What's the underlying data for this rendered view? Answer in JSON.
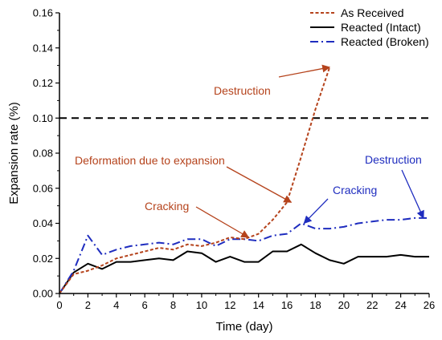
{
  "chart_data": {
    "type": "line",
    "xlabel": "Time (day)",
    "ylabel": "Expansion rate (%)",
    "xlim": [
      0,
      26
    ],
    "ylim": [
      0,
      0.16
    ],
    "x_ticks": [
      0,
      2,
      4,
      6,
      8,
      10,
      12,
      14,
      16,
      18,
      20,
      22,
      24,
      26
    ],
    "y_ticks": [
      0.0,
      0.02,
      0.04,
      0.06,
      0.08,
      0.1,
      0.12,
      0.14,
      0.16
    ],
    "x_tick_labels": [
      "0",
      "2",
      "4",
      "6",
      "8",
      "10",
      "12",
      "14",
      "16",
      "18",
      "20",
      "22",
      "24",
      "26"
    ],
    "y_tick_labels": [
      "0.00",
      "0.02",
      "0.04",
      "0.06",
      "0.08",
      "0.10",
      "0.12",
      "0.14",
      "0.16"
    ],
    "grid": false,
    "legend_position": "top-right",
    "reference_line": {
      "y": 0.1,
      "style": "dashed",
      "color": "#000000"
    },
    "series": [
      {
        "name": "As Received",
        "color": "#b5431c",
        "style": "dashed",
        "x": [
          0,
          1,
          2,
          3,
          4,
          5,
          6,
          7,
          8,
          9,
          10,
          11,
          12,
          13,
          14,
          15,
          16,
          17,
          18,
          19
        ],
        "y": [
          0.0,
          0.011,
          0.013,
          0.016,
          0.02,
          0.022,
          0.024,
          0.026,
          0.025,
          0.028,
          0.027,
          0.029,
          0.032,
          0.031,
          0.034,
          0.042,
          0.052,
          0.078,
          0.105,
          0.129
        ]
      },
      {
        "name": "Reacted (Intact)",
        "color": "#000000",
        "style": "solid",
        "x": [
          0,
          1,
          2,
          3,
          4,
          5,
          6,
          7,
          8,
          9,
          10,
          11,
          12,
          13,
          14,
          15,
          16,
          17,
          18,
          19,
          20,
          21,
          22,
          23,
          24,
          25,
          26
        ],
        "y": [
          0.0,
          0.012,
          0.017,
          0.014,
          0.018,
          0.018,
          0.019,
          0.02,
          0.019,
          0.024,
          0.023,
          0.018,
          0.021,
          0.018,
          0.018,
          0.024,
          0.024,
          0.028,
          0.023,
          0.019,
          0.017,
          0.021,
          0.021,
          0.021,
          0.022,
          0.021,
          0.021
        ]
      },
      {
        "name": "Reacted (Broken)",
        "color": "#1f2dbf",
        "style": "dashdot",
        "x": [
          0,
          1,
          2,
          3,
          4,
          5,
          6,
          7,
          8,
          9,
          10,
          11,
          12,
          13,
          14,
          15,
          16,
          17,
          18,
          19,
          20,
          21,
          22,
          23,
          24,
          25,
          26
        ],
        "y": [
          0.0,
          0.013,
          0.033,
          0.022,
          0.025,
          0.027,
          0.028,
          0.029,
          0.028,
          0.031,
          0.031,
          0.027,
          0.031,
          0.031,
          0.03,
          0.033,
          0.034,
          0.04,
          0.037,
          0.037,
          0.038,
          0.04,
          0.041,
          0.042,
          0.042,
          0.043,
          0.043
        ]
      }
    ],
    "annotations": [
      {
        "text": "Destruction",
        "color": "#b5431c",
        "arrow_to": [
          19,
          0.129
        ]
      },
      {
        "text": "Deformation due to expansion",
        "color": "#b5431c",
        "arrow_to": [
          16.3,
          0.052
        ]
      },
      {
        "text": "Cracking",
        "color": "#b5431c",
        "arrow_to": [
          13.3,
          0.032
        ]
      },
      {
        "text": "Cracking",
        "color": "#1f2dbf",
        "arrow_to": [
          17.2,
          0.04
        ]
      },
      {
        "text": "Destruction",
        "color": "#1f2dbf",
        "arrow_to": [
          25.6,
          0.043
        ]
      }
    ]
  }
}
